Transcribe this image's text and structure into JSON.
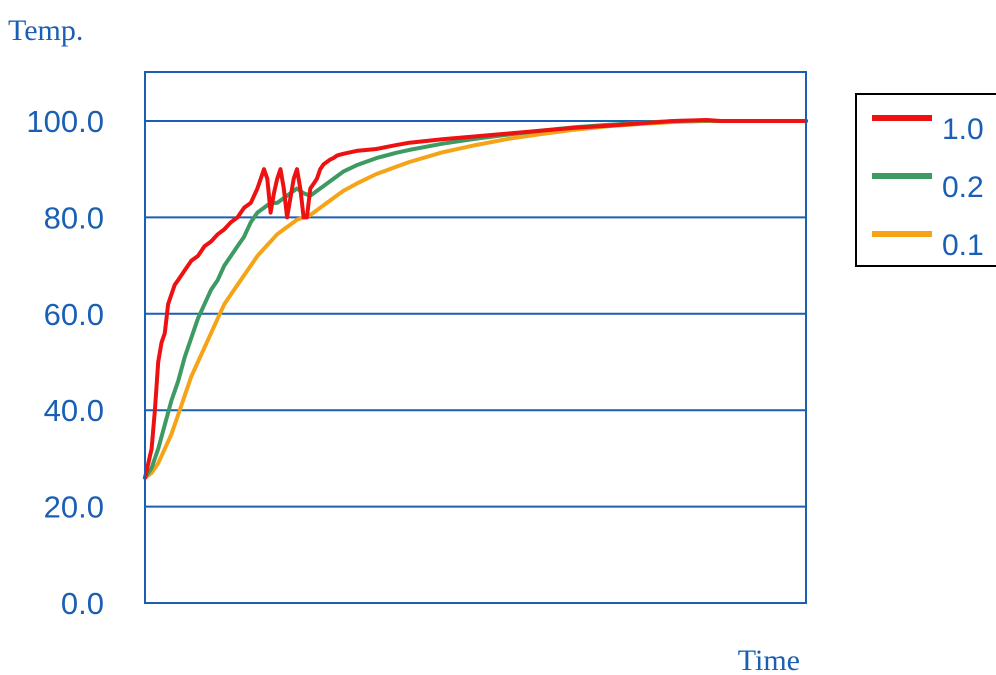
{
  "chart_data": {
    "type": "line",
    "xlabel": "Time",
    "ylabel": "Temp.",
    "ylim": [
      0,
      100
    ],
    "xlim": [
      0,
      100
    ],
    "y_ticks": [
      "0.0",
      "20.0",
      "40.0",
      "60.0",
      "80.0",
      "100.0"
    ],
    "grid": true,
    "legend_position": "right",
    "colors": {
      "axis": "#1a5fb4",
      "text": "#1a5fb4",
      "grid": "#1a5fb4",
      "legend_border": "#000000"
    },
    "series": [
      {
        "name": "1.0",
        "color": "#ee1111",
        "x": [
          0,
          1,
          1.5,
          2,
          2.5,
          3,
          3.5,
          4,
          4.5,
          5,
          6,
          7,
          8,
          9,
          10,
          11,
          12,
          13,
          14,
          15,
          16,
          17,
          18,
          18.5,
          19,
          19.5,
          20,
          20.5,
          21,
          21.5,
          22,
          22.5,
          23,
          23.5,
          24,
          24.5,
          25,
          25.5,
          26,
          26.5,
          27,
          27.5,
          28,
          28.5,
          29,
          29.5,
          30,
          32,
          35,
          38,
          40,
          45,
          50,
          55,
          60,
          65,
          70,
          75,
          80,
          85,
          87,
          90,
          95,
          100
        ],
        "y": [
          26,
          32,
          40,
          50,
          54,
          56,
          62,
          64,
          66,
          67,
          69,
          71,
          72,
          74,
          75,
          76.5,
          77.5,
          79,
          80,
          82,
          83,
          86,
          90,
          88,
          81,
          85,
          88,
          90,
          86,
          80,
          84,
          88,
          90,
          86,
          80,
          80,
          86,
          87,
          88,
          90,
          91,
          91.5,
          92,
          92.3,
          92.8,
          93,
          93.2,
          93.8,
          94.2,
          95,
          95.5,
          96.2,
          96.8,
          97.4,
          98,
          98.6,
          99,
          99.5,
          100,
          100.2,
          100,
          100,
          100,
          100
        ]
      },
      {
        "name": "0.2",
        "color": "#3d9a62",
        "x": [
          0,
          1,
          2,
          3,
          4,
          5,
          6,
          7,
          8,
          9,
          10,
          11,
          12,
          13,
          14,
          15,
          16,
          17,
          18,
          19,
          20,
          21,
          22,
          23,
          24,
          25,
          26,
          27,
          28,
          30,
          32,
          35,
          38,
          40,
          45,
          50,
          55,
          60,
          65,
          70,
          75,
          80,
          85,
          87,
          90,
          95,
          100
        ],
        "y": [
          26,
          28,
          32,
          37,
          42,
          46,
          51,
          55,
          59,
          62,
          65,
          67,
          70,
          72,
          74,
          76,
          79,
          81,
          82,
          83,
          83,
          84,
          85,
          86,
          85,
          84.5,
          85.5,
          86.5,
          87.5,
          89.5,
          90.8,
          92.3,
          93.4,
          94,
          95.3,
          96.3,
          97.2,
          98,
          98.7,
          99.2,
          99.6,
          100,
          100.1,
          100,
          100,
          100,
          100
        ]
      },
      {
        "name": "0.1",
        "color": "#f5a418",
        "x": [
          0,
          1,
          2,
          3,
          4,
          5,
          6,
          7,
          8,
          9,
          10,
          11,
          12,
          13,
          14,
          15,
          16,
          17,
          18,
          19,
          20,
          21,
          22,
          23,
          24,
          25,
          26,
          27,
          28,
          30,
          32,
          35,
          38,
          40,
          45,
          50,
          55,
          60,
          65,
          70,
          75,
          80,
          85,
          87,
          90,
          95,
          100
        ],
        "y": [
          26,
          27,
          29,
          32,
          35,
          39,
          43,
          47,
          50,
          53,
          56,
          59,
          62,
          64,
          66,
          68,
          70,
          72,
          73.5,
          75,
          76.5,
          77.5,
          78.5,
          79.5,
          80,
          80.5,
          81.5,
          82.5,
          83.5,
          85.5,
          87,
          89,
          90.5,
          91.5,
          93.5,
          95,
          96.3,
          97.3,
          98.2,
          98.9,
          99.4,
          99.8,
          100,
          100,
          100,
          100,
          100
        ]
      }
    ]
  }
}
